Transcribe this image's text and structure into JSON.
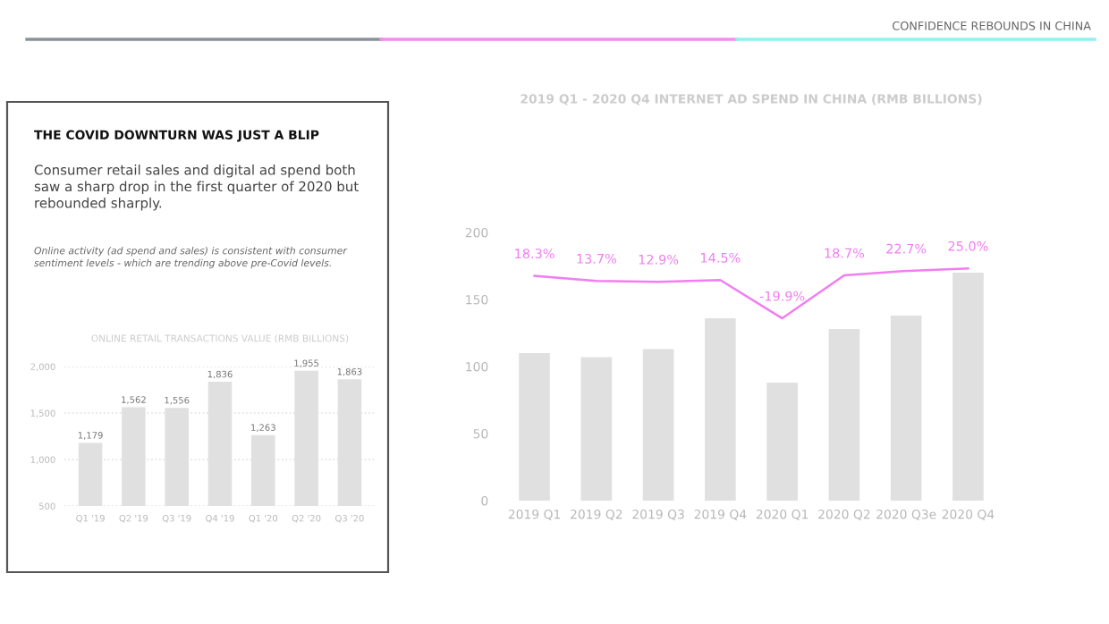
{
  "chart_data": [
    {
      "type": "other",
      "title": "THE COVID DOWNTURN WAS JUST A BLIP",
      "annotations": [
        "CONFIDENCE REBOUNDS IN CHINA",
        "Consumer retail sales and digital ad spend both saw a sharp drop in the first quarter of 2020 but rebounded sharply.",
        "Online activity (ad spend and sales) is consistent with consumer sentiment levels - which are trending above pre-Covid levels."
      ]
    },
    {
      "type": "bar",
      "title": "ONLINE RETAIL TRANSACTIONS VALUE (RMB BILLIONS)",
      "categories": [
        "Q1 '19",
        "Q2 '19",
        "Q3 '19",
        "Q4 '19",
        "Q1 '20",
        "Q2 '20",
        "Q3 '20"
      ],
      "values": [
        1179,
        1562,
        1556,
        1836,
        1263,
        1955,
        1863
      ],
      "value_labels": [
        "1,179",
        "1,562",
        "1,556",
        "1,836",
        "1,263",
        "1,955",
        "1,863"
      ],
      "color": "#e0e0e0",
      "ylim": [
        500,
        2000
      ],
      "yticks": [
        {
          "value": 500,
          "label": "500"
        },
        {
          "value": 1000,
          "label": "1,000"
        },
        {
          "value": 1500,
          "label": "1,500"
        },
        {
          "value": 2000,
          "label": "2,000"
        }
      ],
      "grid": "y"
    },
    {
      "type": "bar",
      "title": "2019 Q1 - 2020 Q4 INTERNET AD SPEND IN CHINA (RMB BILLIONS)",
      "categories": [
        "2019 Q1",
        "2019 Q2",
        "2019 Q3",
        "2019 Q4",
        "2020 Q1",
        "2020 Q2",
        "2020 Q3e",
        "2020 Q4"
      ],
      "series": [
        {
          "type": "bar",
          "color": "#e0e0e0",
          "values": [
            110,
            107,
            113,
            136,
            88,
            128,
            138,
            170
          ]
        },
        {
          "type": "line",
          "axis": "y2",
          "color": "#f07ef0",
          "values": [
            18.3,
            13.7,
            12.9,
            14.5,
            -19.9,
            18.7,
            22.7,
            25.0
          ],
          "value_labels": [
            "18.3%",
            "13.7%",
            "12.9%",
            "14.5%",
            "-19.9%",
            "18.7%",
            "22.7%",
            "25.0%"
          ]
        }
      ],
      "ylim": [
        0,
        200
      ],
      "yticks": [
        0,
        50,
        100,
        150,
        200
      ]
    }
  ]
}
